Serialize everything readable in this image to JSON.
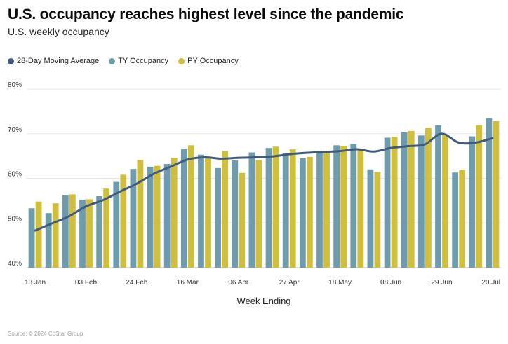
{
  "header": {
    "title": "U.S. occupancy reaches highest level since the pandemic",
    "subtitle": "U.S. weekly occupancy"
  },
  "colors": {
    "ty": "#6f9cad",
    "py": "#d0bf3c",
    "avg": "#3f5c7e",
    "grid": "#e6e6e6",
    "axis": "#8a8a8a"
  },
  "source": "Source: © 2024 CoStar Group",
  "chart_data": {
    "type": "bar",
    "title": "U.S. occupancy reaches highest level since the pandemic",
    "subtitle": "U.S. weekly occupancy",
    "xlabel": "Week Ending",
    "ylabel": "",
    "ylim": [
      40,
      80
    ],
    "yticks": [
      40,
      50,
      60,
      70,
      80
    ],
    "ytick_labels": [
      "40%",
      "50%",
      "60%",
      "70%",
      "80%"
    ],
    "legend_position": "top-left",
    "grid": "horizontal",
    "x_tick_labels": [
      {
        "index": 0,
        "label": "13 Jan"
      },
      {
        "index": 3,
        "label": "03 Feb"
      },
      {
        "index": 6,
        "label": "24 Feb"
      },
      {
        "index": 9,
        "label": "16 Mar"
      },
      {
        "index": 12,
        "label": "06 Apr"
      },
      {
        "index": 15,
        "label": "27 Apr"
      },
      {
        "index": 18,
        "label": "18 May"
      },
      {
        "index": 21,
        "label": "08 Jun"
      },
      {
        "index": 24,
        "label": "29 Jun"
      },
      {
        "index": 27,
        "label": "20 Jul"
      }
    ],
    "categories": [
      "13 Jan",
      "20 Jan",
      "27 Jan",
      "03 Feb",
      "10 Feb",
      "17 Feb",
      "24 Feb",
      "02 Mar",
      "09 Mar",
      "16 Mar",
      "23 Mar",
      "30 Mar",
      "06 Apr",
      "13 Apr",
      "20 Apr",
      "27 Apr",
      "04 May",
      "11 May",
      "18 May",
      "25 May",
      "01 Jun",
      "08 Jun",
      "15 Jun",
      "22 Jun",
      "29 Jun",
      "06 Jul",
      "13 Jul",
      "20 Jul"
    ],
    "series": [
      {
        "name": "TY Occupancy",
        "type": "bar",
        "values": [
          53.3,
          52.2,
          56.2,
          55.2,
          56.0,
          59.2,
          62.1,
          62.6,
          63.2,
          66.5,
          65.3,
          62.3,
          64.0,
          65.8,
          66.8,
          65.6,
          64.5,
          66.0,
          67.4,
          67.7,
          62.0,
          69.1,
          70.3,
          69.6,
          71.9,
          61.3,
          69.4,
          73.5
        ]
      },
      {
        "name": "PY Occupancy",
        "type": "bar",
        "values": [
          54.8,
          54.4,
          56.4,
          55.3,
          57.7,
          60.8,
          64.1,
          62.8,
          64.6,
          67.4,
          64.9,
          66.1,
          61.2,
          64.1,
          67.1,
          66.5,
          64.8,
          65.9,
          67.3,
          66.4,
          61.4,
          69.3,
          70.6,
          71.3,
          69.8,
          61.9,
          71.9,
          72.8
        ]
      },
      {
        "name": "28-Day Moving Average",
        "type": "line",
        "values": [
          48.3,
          49.9,
          51.5,
          53.7,
          55.1,
          57.0,
          58.8,
          61.0,
          62.6,
          64.2,
          64.7,
          64.4,
          64.6,
          64.7,
          64.9,
          65.4,
          65.7,
          65.9,
          66.1,
          66.5,
          66.0,
          66.8,
          67.2,
          67.6,
          70.0,
          68.0,
          68.0,
          69.0
        ]
      }
    ]
  }
}
